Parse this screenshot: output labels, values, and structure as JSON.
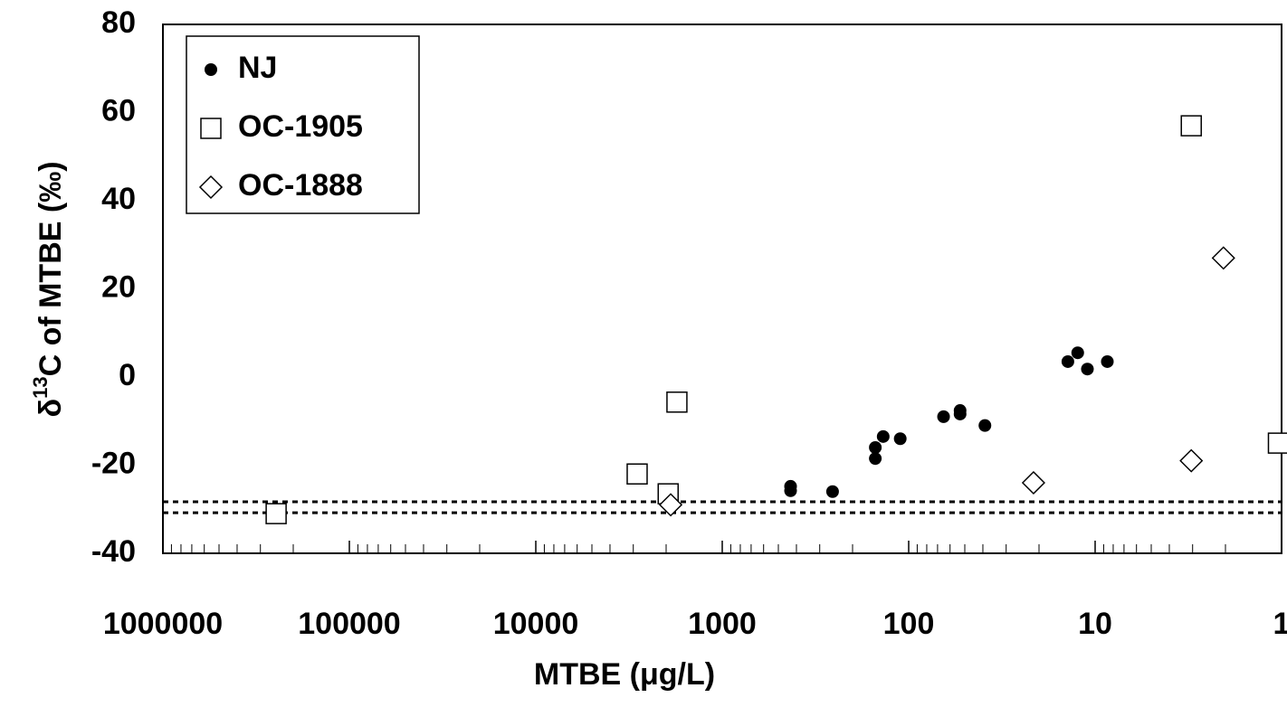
{
  "chart_data": {
    "type": "scatter",
    "xlabel": "MTBE (μg/L)",
    "ylabel": {
      "base": "δ",
      "sup": "13",
      "rest": "C of MTBE (‰)"
    },
    "xscale": "log",
    "minor_ticks": true,
    "xlim": [
      1000000,
      1
    ],
    "xticks": [
      1000000,
      100000,
      10000,
      1000,
      100,
      10,
      1
    ],
    "ylim": [
      -40,
      80
    ],
    "yticks": [
      -40,
      -20,
      0,
      20,
      40,
      60,
      80
    ],
    "hlines": [
      -28.3,
      -30.8
    ],
    "legend": "top-left",
    "series": [
      {
        "name": "NJ",
        "marker": "circle",
        "color": "#000000",
        "x": [
          430,
          430,
          256,
          151,
          151,
          137,
          111,
          65,
          53,
          53,
          39,
          14,
          12.4,
          11,
          8.6
        ],
        "values": [
          -24.8,
          -25.8,
          -26,
          -16,
          -18.5,
          -13.5,
          -14,
          -9,
          -7.6,
          -8.4,
          -11,
          3.5,
          5.5,
          1.8,
          3.5
        ]
      },
      {
        "name": "OC-1905",
        "marker": "square",
        "color": "#000000",
        "x": [
          247000,
          2860,
          1950,
          1750,
          3.05,
          1.04
        ],
        "values": [
          -31,
          -22,
          -26.5,
          -5.7,
          57,
          -15
        ]
      },
      {
        "name": "OC-1888",
        "marker": "diamond",
        "color": "#000000",
        "x": [
          1890,
          21.4,
          3.05,
          2.05
        ],
        "values": [
          -29,
          -24,
          -19,
          27
        ]
      }
    ]
  }
}
